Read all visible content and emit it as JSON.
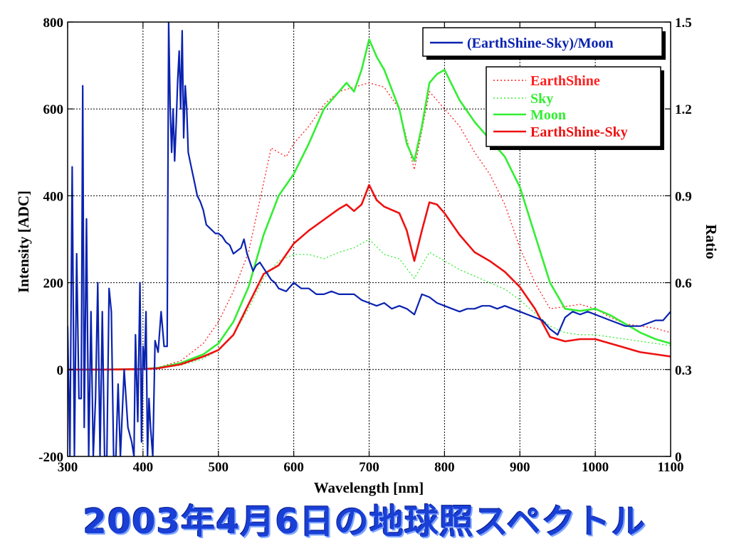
{
  "caption": "2003年4月6日の地球照スペクトル",
  "chart_data": {
    "type": "line",
    "xlabel": "Wavelength [nm]",
    "ylabel": "Intensity [ADC]",
    "y2label": "Ratio",
    "xlim": [
      300,
      1100
    ],
    "ylim": [
      -200,
      800
    ],
    "y2lim": [
      0,
      1.5
    ],
    "xticks": [
      300,
      400,
      500,
      600,
      700,
      800,
      900,
      1000,
      1100
    ],
    "yticks": [
      -200,
      0,
      200,
      400,
      600,
      800
    ],
    "y2ticks": [
      "0",
      "0.3",
      "0.6",
      "0.9",
      "1.2",
      "1.5"
    ],
    "grid": true,
    "legend_main": {
      "placement": "right, below top",
      "entries": [
        {
          "name": "EarthShine",
          "color": "#ff2020",
          "style": "dotted"
        },
        {
          "name": "Sky",
          "color": "#33ee33",
          "style": "dotted"
        },
        {
          "name": "Moon",
          "color": "#33ee33",
          "style": "solid"
        },
        {
          "name": "EarthShine-Sky",
          "color": "#ee1111",
          "style": "solid"
        }
      ]
    },
    "legend_ratio": {
      "placement": "top-right",
      "entries": [
        {
          "name": "(EarthShine-Sky)/Moon",
          "color": "#0a22b0",
          "style": "solid"
        }
      ]
    },
    "series": [
      {
        "name": "EarthShine",
        "axis": "left",
        "color": "#ff2020",
        "style": "dotted",
        "x": [
          300,
          350,
          400,
          420,
          450,
          480,
          500,
          520,
          540,
          550,
          560,
          570,
          580,
          590,
          600,
          620,
          640,
          660,
          680,
          700,
          720,
          740,
          760,
          780,
          800,
          820,
          840,
          860,
          880,
          900,
          920,
          940,
          960,
          980,
          1000,
          1020,
          1040,
          1060,
          1080,
          1100
        ],
        "y": [
          0,
          0,
          2,
          5,
          20,
          60,
          110,
          180,
          270,
          350,
          430,
          510,
          500,
          490,
          520,
          560,
          610,
          640,
          650,
          660,
          650,
          600,
          460,
          640,
          600,
          560,
          500,
          450,
          380,
          280,
          200,
          140,
          145,
          150,
          140,
          120,
          105,
          100,
          95,
          85
        ]
      },
      {
        "name": "Sky",
        "axis": "left",
        "color": "#33ee33",
        "style": "dotted",
        "x": [
          300,
          350,
          400,
          420,
          450,
          480,
          500,
          520,
          540,
          560,
          580,
          600,
          620,
          640,
          660,
          680,
          700,
          720,
          740,
          760,
          780,
          800,
          820,
          840,
          860,
          880,
          900,
          920,
          940,
          960,
          980,
          1000,
          1020,
          1040,
          1060,
          1080,
          1100
        ],
        "y": [
          0,
          0,
          1,
          3,
          10,
          25,
          45,
          80,
          140,
          210,
          250,
          265,
          265,
          255,
          270,
          280,
          300,
          265,
          255,
          210,
          270,
          250,
          230,
          215,
          200,
          185,
          160,
          130,
          100,
          85,
          80,
          80,
          75,
          70,
          65,
          60,
          55
        ]
      },
      {
        "name": "Moon",
        "axis": "left",
        "color": "#33ee33",
        "style": "solid",
        "x": [
          300,
          350,
          400,
          420,
          450,
          480,
          500,
          520,
          540,
          560,
          580,
          600,
          620,
          640,
          660,
          670,
          680,
          690,
          700,
          710,
          720,
          740,
          750,
          760,
          770,
          780,
          790,
          800,
          820,
          840,
          860,
          880,
          900,
          920,
          940,
          960,
          980,
          1000,
          1020,
          1040,
          1060,
          1080,
          1100
        ],
        "y": [
          0,
          0,
          1,
          4,
          15,
          35,
          60,
          110,
          190,
          310,
          400,
          450,
          520,
          600,
          640,
          660,
          640,
          690,
          760,
          720,
          690,
          600,
          520,
          480,
          560,
          660,
          680,
          690,
          620,
          570,
          530,
          490,
          420,
          310,
          200,
          140,
          135,
          140,
          125,
          105,
          85,
          70,
          60
        ]
      },
      {
        "name": "EarthShine-Sky",
        "axis": "left",
        "color": "#ee1111",
        "style": "solid",
        "x": [
          300,
          350,
          400,
          420,
          450,
          480,
          500,
          520,
          540,
          560,
          580,
          600,
          620,
          640,
          660,
          670,
          680,
          690,
          700,
          710,
          720,
          740,
          750,
          760,
          770,
          780,
          790,
          800,
          820,
          840,
          860,
          880,
          900,
          920,
          940,
          960,
          980,
          1000,
          1020,
          1040,
          1060,
          1080,
          1100
        ],
        "y": [
          0,
          0,
          1,
          3,
          12,
          30,
          45,
          80,
          150,
          220,
          240,
          290,
          320,
          345,
          370,
          380,
          365,
          380,
          425,
          390,
          375,
          360,
          320,
          250,
          320,
          385,
          380,
          360,
          310,
          270,
          250,
          225,
          190,
          140,
          75,
          65,
          70,
          70,
          60,
          50,
          40,
          35,
          30
        ]
      },
      {
        "name": "(EarthShine-Sky)/Moon",
        "axis": "right",
        "color": "#0a22b0",
        "style": "solid",
        "x": [
          300,
          303,
          306,
          309,
          312,
          315,
          318,
          320,
          322,
          325,
          328,
          331,
          334,
          337,
          340,
          343,
          346,
          349,
          352,
          355,
          358,
          361,
          364,
          367,
          370,
          375,
          380,
          385,
          388,
          390,
          393,
          396,
          398,
          400,
          402,
          404,
          406,
          408,
          410,
          413,
          416,
          420,
          424,
          428,
          432,
          434,
          436,
          438,
          440,
          442,
          444,
          446,
          448,
          450,
          452,
          454,
          456,
          458,
          460,
          464,
          468,
          472,
          476,
          480,
          484,
          488,
          492,
          496,
          500,
          505,
          510,
          515,
          520,
          525,
          530,
          534,
          538,
          542,
          546,
          550,
          555,
          560,
          565,
          570,
          575,
          580,
          590,
          600,
          610,
          620,
          630,
          640,
          650,
          660,
          670,
          680,
          690,
          700,
          710,
          720,
          730,
          740,
          750,
          760,
          770,
          780,
          790,
          800,
          810,
          820,
          830,
          840,
          850,
          860,
          870,
          880,
          890,
          900,
          910,
          920,
          930,
          940,
          950,
          960,
          970,
          980,
          990,
          1000,
          1010,
          1020,
          1030,
          1040,
          1050,
          1060,
          1070,
          1080,
          1090,
          1100
        ],
        "y": [
          0.45,
          0.0,
          1.0,
          0.0,
          0.7,
          0.2,
          0.2,
          1.28,
          0.1,
          0.82,
          0.0,
          0.5,
          0.0,
          0.2,
          0.6,
          0.0,
          0.5,
          0.0,
          0.0,
          0.58,
          0.5,
          0.0,
          0.0,
          0.25,
          0.0,
          0.3,
          0.1,
          0.05,
          0.0,
          0.42,
          0.12,
          0.6,
          0.05,
          0.38,
          0.3,
          0.5,
          0.0,
          0.2,
          0.1,
          0.0,
          0.4,
          0.36,
          0.5,
          0.38,
          0.38,
          1.5,
          1.21,
          1.05,
          1.2,
          1.02,
          1.15,
          1.3,
          1.4,
          1.2,
          1.47,
          1.1,
          1.28,
          1.2,
          1.05,
          1.0,
          0.95,
          0.9,
          0.88,
          0.85,
          0.8,
          0.79,
          0.78,
          0.77,
          0.77,
          0.76,
          0.74,
          0.73,
          0.7,
          0.71,
          0.72,
          0.75,
          0.7,
          0.67,
          0.64,
          0.66,
          0.67,
          0.65,
          0.63,
          0.61,
          0.6,
          0.58,
          0.57,
          0.6,
          0.58,
          0.58,
          0.56,
          0.56,
          0.57,
          0.56,
          0.56,
          0.56,
          0.54,
          0.53,
          0.52,
          0.53,
          0.51,
          0.52,
          0.51,
          0.49,
          0.56,
          0.55,
          0.53,
          0.52,
          0.51,
          0.5,
          0.51,
          0.51,
          0.52,
          0.52,
          0.51,
          0.52,
          0.51,
          0.5,
          0.49,
          0.48,
          0.47,
          0.44,
          0.42,
          0.48,
          0.5,
          0.49,
          0.5,
          0.49,
          0.48,
          0.47,
          0.46,
          0.45,
          0.45,
          0.45,
          0.46,
          0.47,
          0.47,
          0.5
        ]
      }
    ]
  }
}
